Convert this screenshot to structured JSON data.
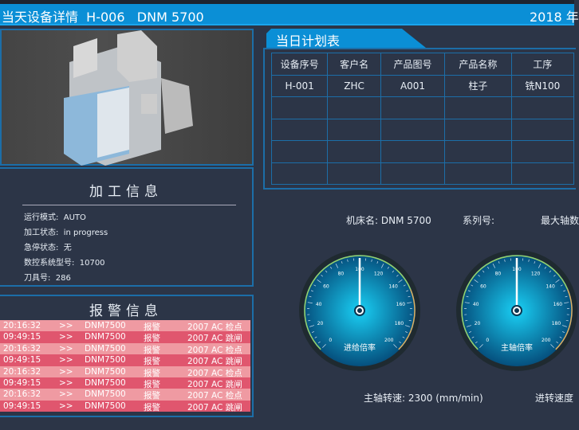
{
  "header": {
    "title": "当天设备详情  H-006   DNM 5700",
    "date": "2018 年"
  },
  "machine_image": {
    "label": "DNM 5700"
  },
  "info": {
    "title": "加工信息",
    "rows": [
      {
        "label": "运行模式:",
        "value": "AUTO"
      },
      {
        "label": "加工状态:",
        "value": "in progress"
      },
      {
        "label": "急停状态:",
        "value": "无"
      },
      {
        "label": "数控系统型号:",
        "value": "10700"
      },
      {
        "label": "刀具号:",
        "value": "286"
      }
    ]
  },
  "alarm": {
    "title": "报警信息",
    "rows": [
      {
        "time": "20:16:32",
        "sep": ">>",
        "machine": "DNM7500",
        "type": "报警",
        "msg": "2007  AC 检点"
      },
      {
        "time": "09:49:15",
        "sep": ">>",
        "machine": "DNM7500",
        "type": "报警",
        "msg": "2007  AC 跳闸"
      },
      {
        "time": "20:16:32",
        "sep": ">>",
        "machine": "DNM7500",
        "type": "报警",
        "msg": "2007  AC 检点"
      },
      {
        "time": "09:49:15",
        "sep": ">>",
        "machine": "DNM7500",
        "type": "报警",
        "msg": "2007  AC 跳闸"
      },
      {
        "time": "20:16:32",
        "sep": ">>",
        "machine": "DNM7500",
        "type": "报警",
        "msg": "2007  AC 检点"
      },
      {
        "time": "09:49:15",
        "sep": ">>",
        "machine": "DNM7500",
        "type": "报警",
        "msg": "2007  AC 跳闸"
      },
      {
        "time": "20:16:32",
        "sep": ">>",
        "machine": "DNM7500",
        "type": "报警",
        "msg": "2007  AC 检点"
      },
      {
        "time": "09:49:15",
        "sep": ">>",
        "machine": "DNM7500",
        "type": "报警",
        "msg": "2007  AC 跳闸"
      }
    ],
    "colors": {
      "light": "#ef9aa2",
      "dark": "#e0566e"
    }
  },
  "plan": {
    "tab": "当日计划表",
    "columns": [
      "设备序号",
      "客户名",
      "产品图号",
      "产品名称",
      "工序"
    ],
    "rows": [
      [
        "H-001",
        "ZHC",
        "A001",
        "柱子",
        "铣N100"
      ],
      [
        "",
        "",
        "",
        "",
        ""
      ],
      [
        "",
        "",
        "",
        "",
        ""
      ],
      [
        "",
        "",
        "",
        "",
        ""
      ],
      [
        "",
        "",
        "",
        "",
        ""
      ]
    ]
  },
  "machine_info": {
    "name": "机床名:  DNM 5700",
    "series": "系列号:",
    "max_axes": "最大轴数"
  },
  "gauges": [
    {
      "label": "进给倍率",
      "value": 100,
      "min": 0,
      "max": 200,
      "ticks": [
        "0",
        "20",
        "40",
        "60",
        "80",
        "100",
        "120",
        "140",
        "160",
        "180",
        "200"
      ]
    },
    {
      "label": "主轴倍率",
      "value": 100,
      "min": 0,
      "max": 200,
      "ticks": [
        "0",
        "20",
        "40",
        "60",
        "80",
        "100",
        "120",
        "140",
        "160",
        "180",
        "200"
      ]
    }
  ],
  "spindle_speed": "主轴转速:  2300  (mm/min)",
  "feed_speed": "进转速度"
}
